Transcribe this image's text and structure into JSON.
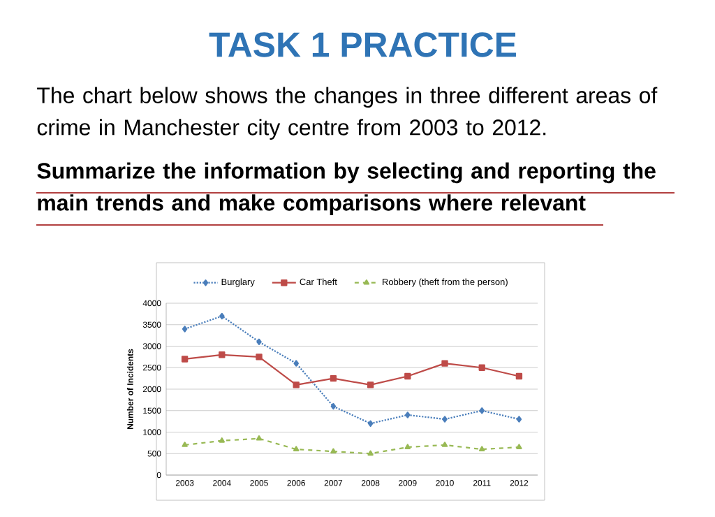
{
  "chart_data": {
    "type": "line",
    "title": "TASK 1 PRACTICE",
    "annotations": [
      "The chart below shows the changes in three different areas of crime in Manchester city centre from 2003 to 2012.",
      "Summarize the information by selecting and reporting the main trends and make comparisons where relevant"
    ],
    "ylabel": "Number of Incidents",
    "categories": [
      "2003",
      "2004",
      "2005",
      "2006",
      "2007",
      "2008",
      "2009",
      "2010",
      "2011",
      "2012"
    ],
    "series": [
      {
        "name": "Burglary",
        "color": "#4a7ebb",
        "marker": "diamond",
        "line_style": "dotted",
        "values": [
          3400,
          3700,
          3100,
          2600,
          1600,
          1200,
          1400,
          1300,
          1500,
          1300
        ]
      },
      {
        "name": "Car Theft",
        "color": "#be4b48",
        "marker": "square",
        "line_style": "solid",
        "values": [
          2700,
          2800,
          2750,
          2100,
          2250,
          2100,
          2300,
          2600,
          2500,
          2300
        ]
      },
      {
        "name": "Robbery (theft from the person)",
        "color": "#98b954",
        "marker": "triangle",
        "line_style": "dashed",
        "values": [
          700,
          800,
          850,
          600,
          550,
          500,
          650,
          700,
          600,
          650
        ]
      }
    ],
    "ylim": [
      0,
      4000
    ],
    "yticks": [
      0,
      500,
      1000,
      1500,
      2000,
      2500,
      3000,
      3500,
      4000
    ],
    "grid": "y",
    "legend": "top"
  }
}
